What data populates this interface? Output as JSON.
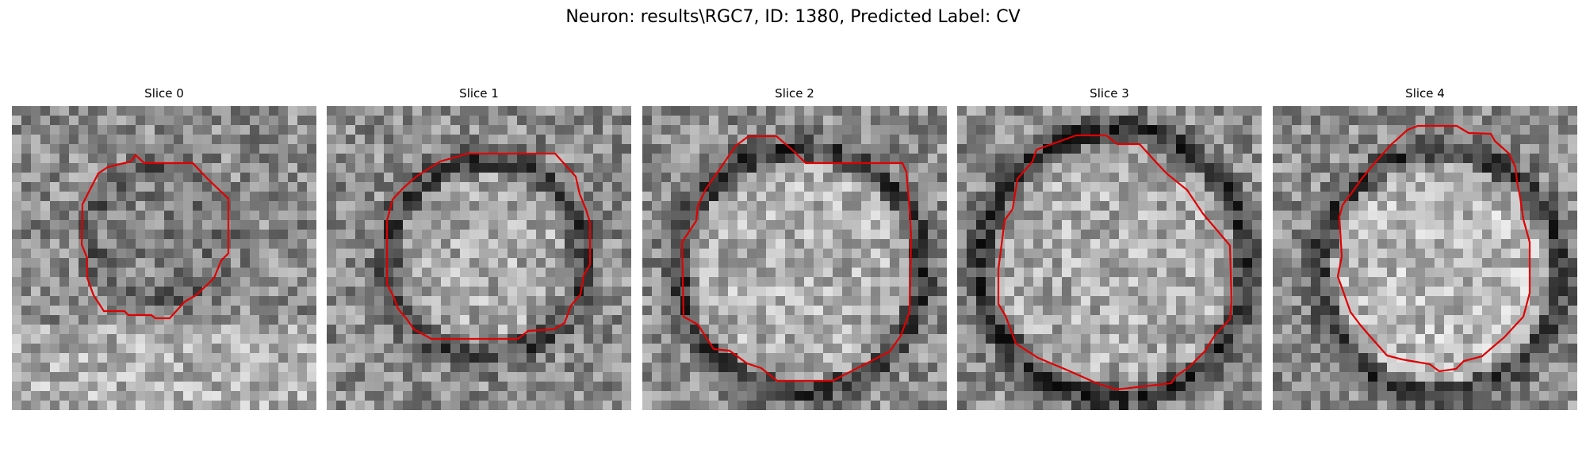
{
  "figure": {
    "title": "Neuron: results\\RGC7, ID: 1380, Predicted Label: CV"
  },
  "panels": [
    {
      "title": "Slice 0"
    },
    {
      "title": "Slice 1"
    },
    {
      "title": "Slice 2"
    },
    {
      "title": "Slice 3"
    },
    {
      "title": "Slice 4"
    }
  ],
  "colors": {
    "contour": "#e00000",
    "background": "#ffffff"
  }
}
